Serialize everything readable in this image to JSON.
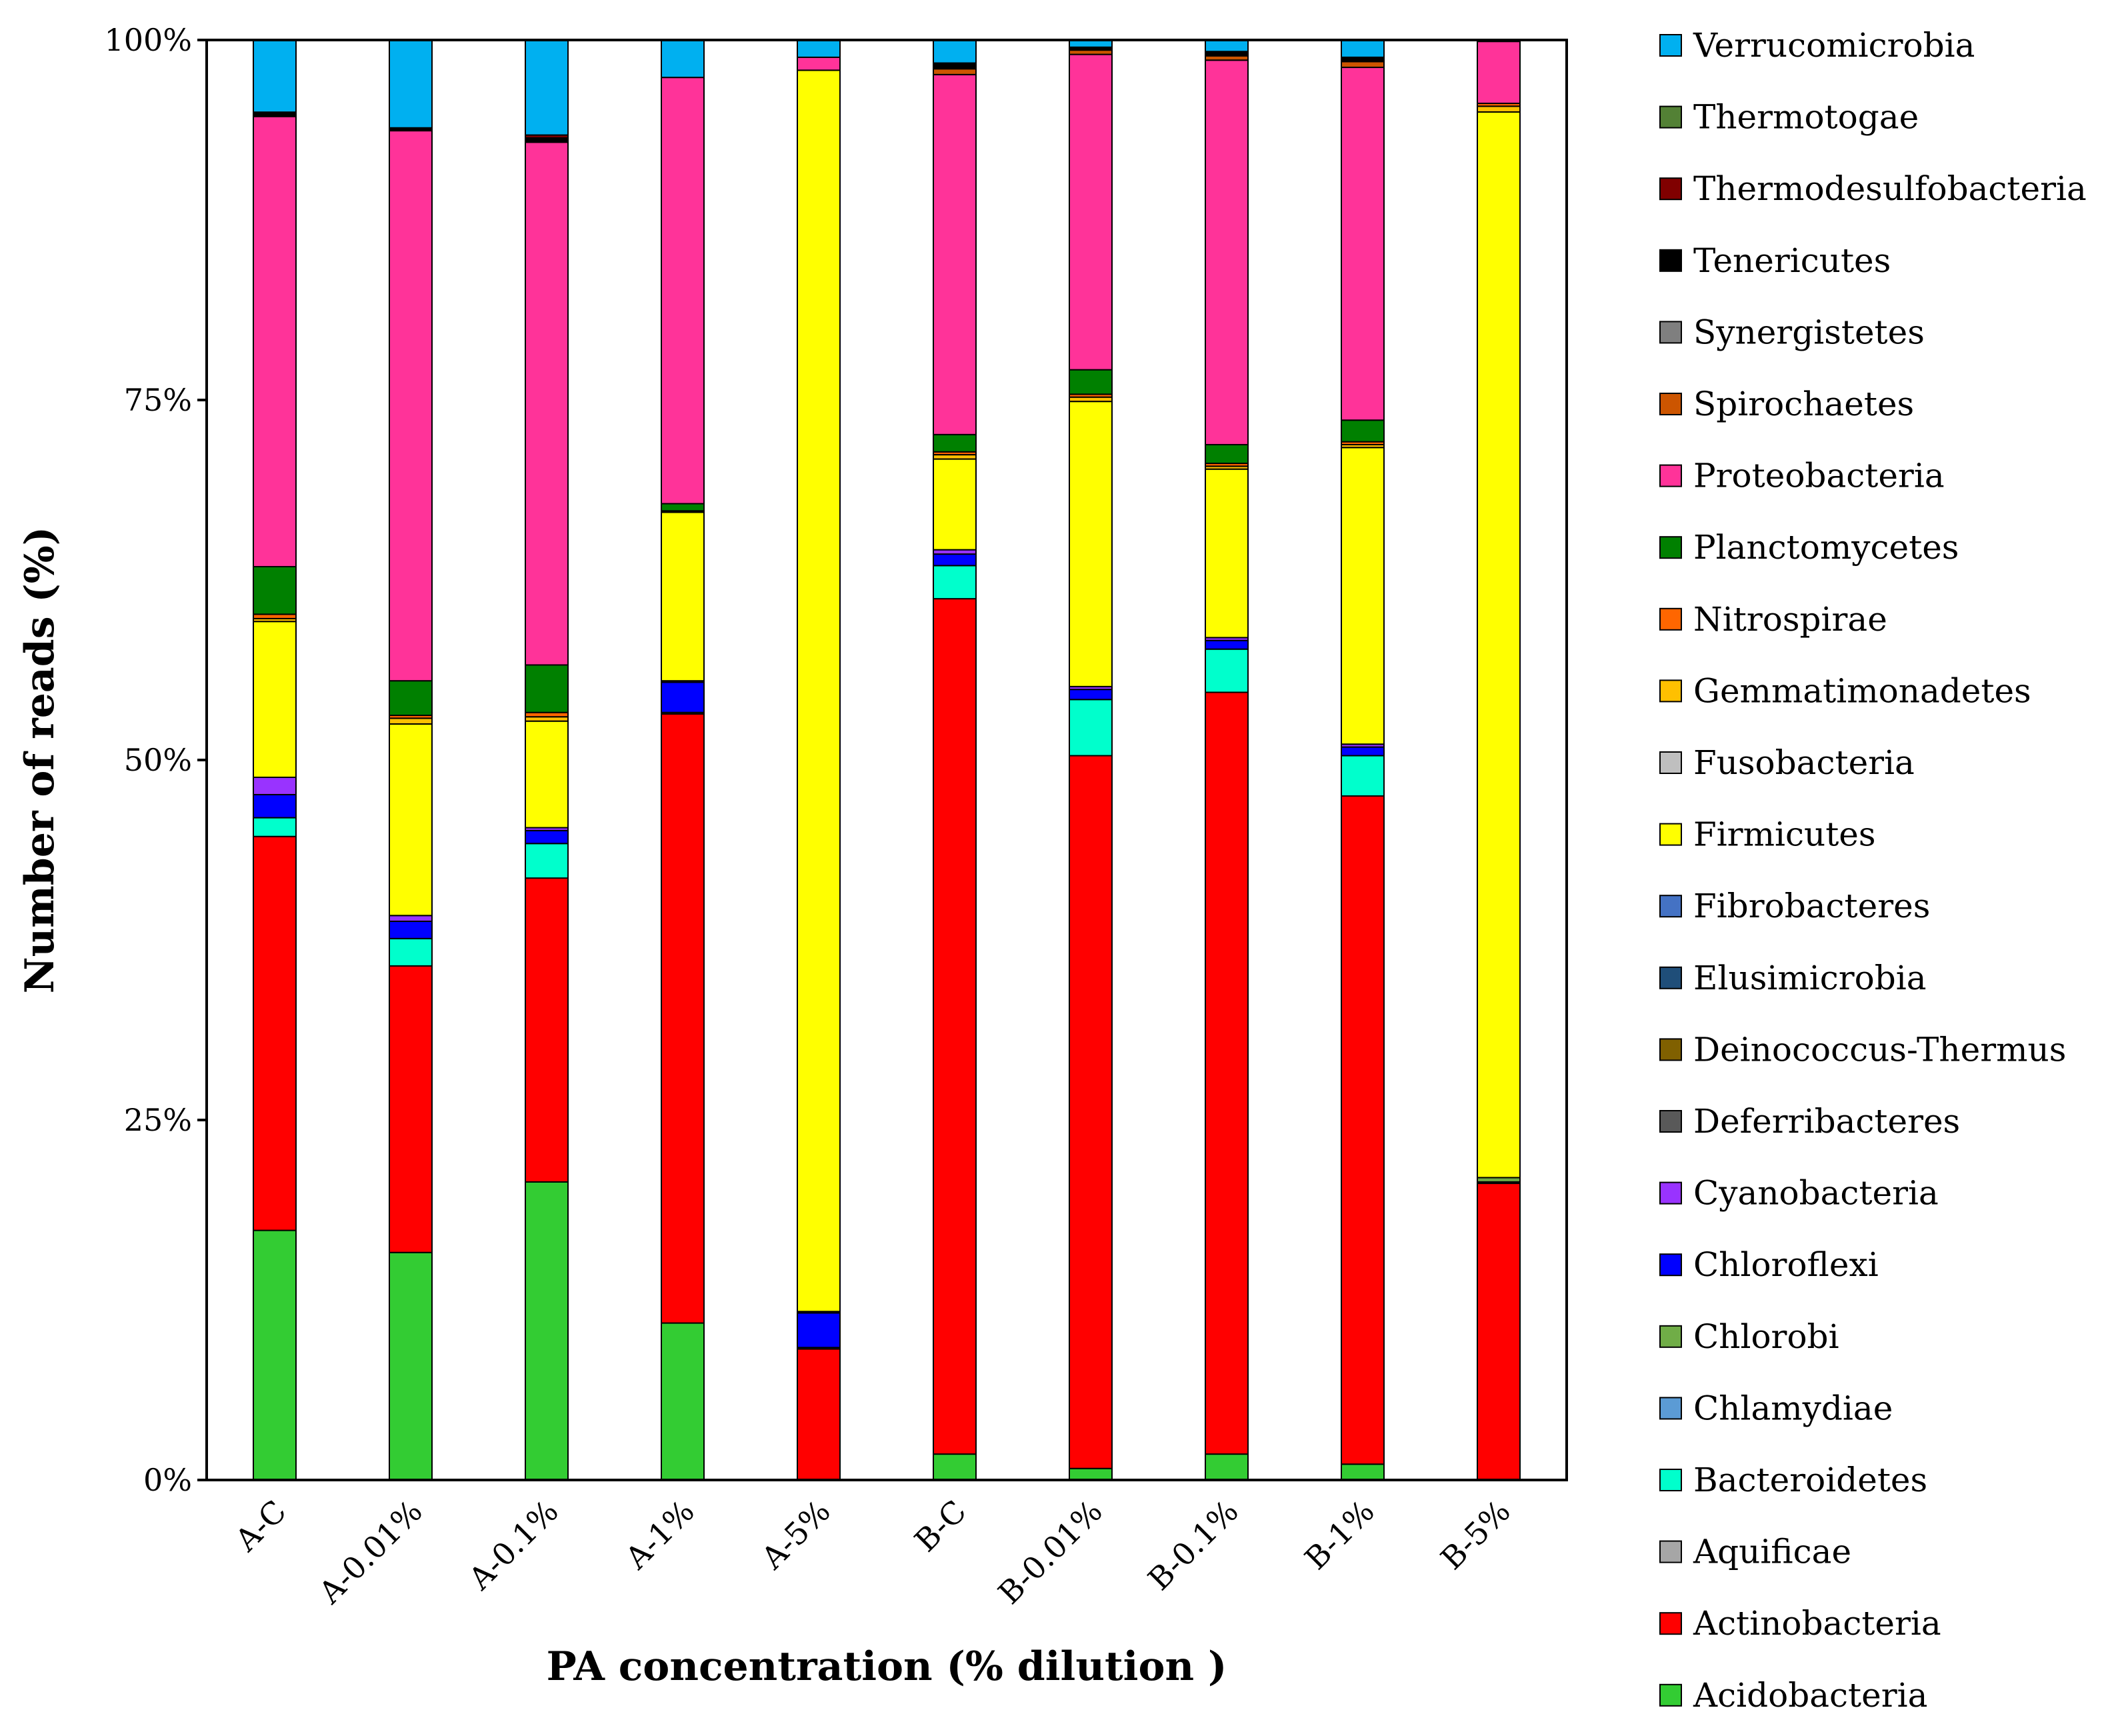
{
  "chart_data": {
    "type": "bar",
    "stacked": true,
    "percent": true,
    "xlabel": "PA concentration (% dilution )",
    "ylabel": "Number of reads (%)",
    "ylim": [
      0,
      100
    ],
    "yticks": [
      "0%",
      "25%",
      "50%",
      "75%",
      "100%"
    ],
    "ytick_values": [
      0,
      25,
      50,
      75,
      100
    ],
    "legend_position": "right",
    "categories": [
      "A-C",
      "A-0.01%",
      "A-0.1%",
      "A-1%",
      "A-5%",
      "B-C",
      "B-0.01%",
      "B-0.1%",
      "B-1%",
      "B-5%"
    ],
    "series": [
      {
        "name": "Acidobacteria",
        "color": "#33cc33",
        "values": [
          17.3,
          15.8,
          20.7,
          10.9,
          0.0,
          1.8,
          0.8,
          1.8,
          1.1,
          0.0
        ]
      },
      {
        "name": "Actinobacteria",
        "color": "#ff0000",
        "values": [
          27.3,
          19.9,
          21.1,
          42.3,
          9.1,
          59.4,
          49.5,
          52.9,
          46.4,
          20.6
        ]
      },
      {
        "name": "Aquificae",
        "color": "#a6a6a6",
        "values": [
          0,
          0,
          0,
          0,
          0,
          0,
          0,
          0,
          0,
          0
        ]
      },
      {
        "name": "Bacteroidetes",
        "color": "#00ffcc",
        "values": [
          1.3,
          1.9,
          2.4,
          0.1,
          0.1,
          2.3,
          3.9,
          3.0,
          2.8,
          0.1
        ]
      },
      {
        "name": "Chlamydiae",
        "color": "#5b9bd5",
        "values": [
          0,
          0,
          0,
          0,
          0,
          0,
          0,
          0,
          0,
          0
        ]
      },
      {
        "name": "Chlorobi",
        "color": "#70ad47",
        "values": [
          0,
          0,
          0,
          0,
          0,
          0,
          0,
          0,
          0,
          0.3
        ]
      },
      {
        "name": "Chloroflexi",
        "color": "#0000ff",
        "values": [
          1.6,
          1.2,
          0.9,
          2.1,
          2.4,
          0.8,
          0.7,
          0.6,
          0.6,
          0
        ]
      },
      {
        "name": "Cyanobacteria",
        "color": "#9933ff",
        "values": [
          1.2,
          0.4,
          0.2,
          0.1,
          0.1,
          0.3,
          0.2,
          0.2,
          0.2,
          0
        ]
      },
      {
        "name": "Deferribacteres",
        "color": "#595959",
        "values": [
          0,
          0,
          0,
          0,
          0,
          0,
          0,
          0,
          0,
          0
        ]
      },
      {
        "name": "Deinococcus-Thermus",
        "color": "#806000",
        "values": [
          0,
          0,
          0,
          0,
          0,
          0,
          0,
          0,
          0,
          0
        ]
      },
      {
        "name": "Elusimicrobia",
        "color": "#1f4e79",
        "values": [
          0,
          0,
          0,
          0,
          0,
          0,
          0,
          0,
          0,
          0
        ]
      },
      {
        "name": "Fibrobacteres",
        "color": "#4472c4",
        "values": [
          0,
          0,
          0,
          0,
          0,
          0,
          0,
          0,
          0,
          0
        ]
      },
      {
        "name": "Firmicutes",
        "color": "#ffff00",
        "values": [
          10.8,
          13.3,
          7.4,
          11.7,
          86.2,
          6.3,
          19.8,
          11.7,
          20.6,
          74.0
        ]
      },
      {
        "name": "Fusobacteria",
        "color": "#bfbfbf",
        "values": [
          0,
          0,
          0,
          0,
          0,
          0,
          0,
          0,
          0,
          0
        ]
      },
      {
        "name": "Gemmatimonadetes",
        "color": "#ffc000",
        "values": [
          0.2,
          0.4,
          0.3,
          0.1,
          0,
          0.3,
          0.3,
          0.2,
          0.2,
          0.4
        ]
      },
      {
        "name": "Nitrospirae",
        "color": "#ff6600",
        "values": [
          0.3,
          0.2,
          0.3,
          0,
          0,
          0.2,
          0.2,
          0.2,
          0.2,
          0.2
        ]
      },
      {
        "name": "Planctomycetes",
        "color": "#008000",
        "values": [
          3.3,
          2.4,
          3.3,
          0.5,
          0,
          1.2,
          1.7,
          1.3,
          1.5,
          0
        ]
      },
      {
        "name": "Proteobacteria",
        "color": "#ff3399",
        "values": [
          31.2,
          38.2,
          36.3,
          29.6,
          0.9,
          25.0,
          21.9,
          26.7,
          24.5,
          4.3
        ]
      },
      {
        "name": "Spirochaetes",
        "color": "#cc5500",
        "values": [
          0,
          0,
          0,
          0,
          0,
          0.4,
          0.3,
          0.3,
          0.4,
          0
        ]
      },
      {
        "name": "Synergistetes",
        "color": "#7f7f7f",
        "values": [
          0,
          0,
          0,
          0,
          0,
          0,
          0,
          0,
          0,
          0
        ]
      },
      {
        "name": "Tenericutes",
        "color": "#000000",
        "values": [
          0.3,
          0.2,
          0.3,
          0,
          0,
          0.4,
          0.2,
          0.3,
          0.3,
          0
        ]
      },
      {
        "name": "Thermodesulfobacteria",
        "color": "#800000",
        "values": [
          0,
          0,
          0.2,
          0,
          0,
          0,
          0,
          0,
          0,
          0
        ]
      },
      {
        "name": "Thermotogae",
        "color": "#538135",
        "values": [
          0,
          0,
          0,
          0,
          0,
          0,
          0,
          0,
          0,
          0
        ]
      },
      {
        "name": "Verrucomicrobia",
        "color": "#00b0f0",
        "values": [
          5.0,
          6.1,
          6.6,
          2.6,
          1.2,
          1.6,
          0.5,
          0.8,
          1.2,
          0.1
        ]
      }
    ]
  }
}
